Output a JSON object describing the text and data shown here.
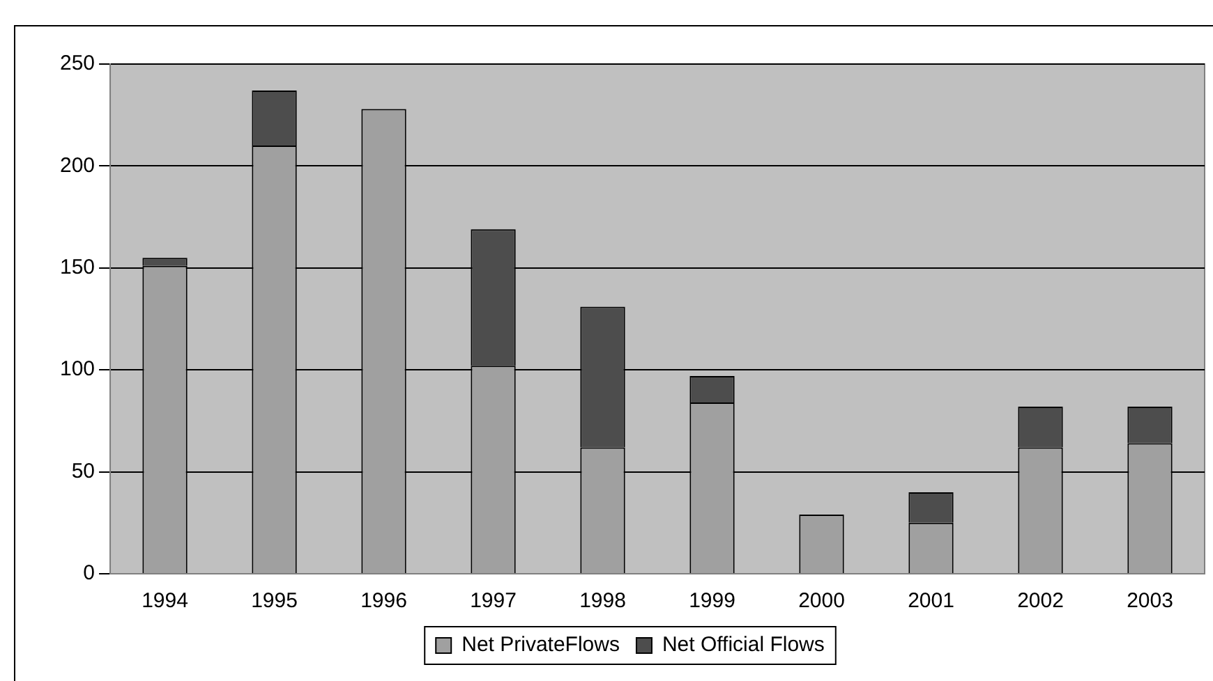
{
  "chart_data": {
    "type": "bar",
    "stacked": true,
    "categories": [
      "1994",
      "1995",
      "1996",
      "1997",
      "1998",
      "1999",
      "2000",
      "2001",
      "2002",
      "2003"
    ],
    "series": [
      {
        "name": "Net PrivateFlows",
        "color": "#a0a0a0",
        "values": [
          151,
          210,
          228,
          102,
          62,
          84,
          29,
          25,
          62,
          64
        ]
      },
      {
        "name": "Net Official Flows",
        "color": "#4d4d4d",
        "values": [
          4,
          27,
          null,
          67,
          69,
          13,
          null,
          15,
          20,
          18
        ]
      }
    ],
    "ylim": [
      0,
      250
    ],
    "yticks": [
      0,
      50,
      100,
      150,
      200,
      250
    ],
    "grid": "y",
    "legend": "bottom"
  }
}
